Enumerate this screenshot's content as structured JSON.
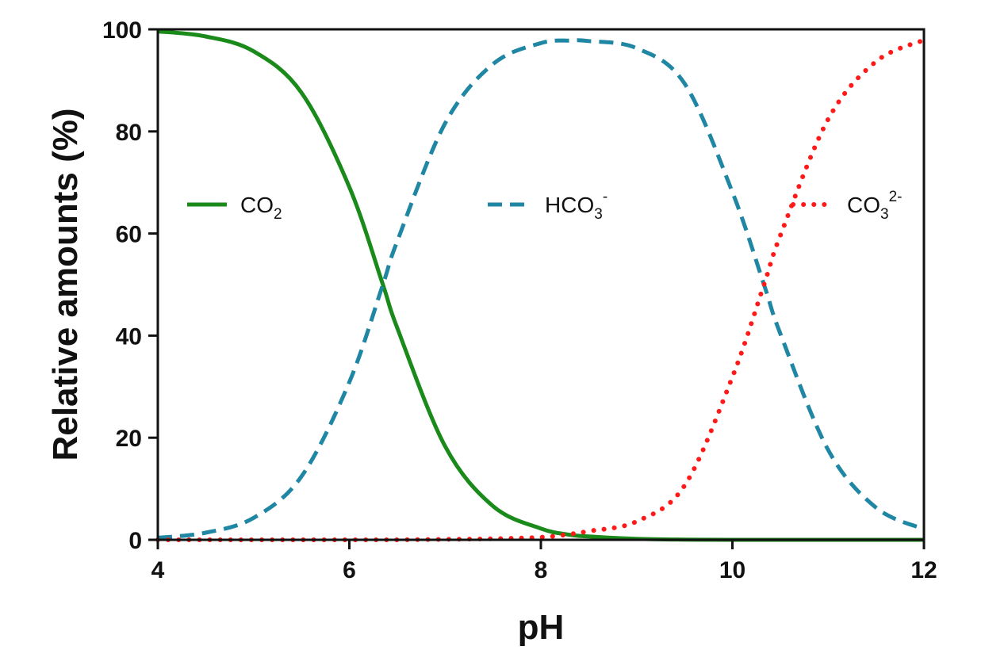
{
  "chart_data": {
    "type": "line",
    "xlabel": "pH",
    "ylabel": "Relative amounts (%)",
    "xlim": [
      4,
      12
    ],
    "ylim": [
      0,
      100
    ],
    "xticks": [
      4,
      6,
      8,
      10,
      12
    ],
    "yticks": [
      0,
      20,
      40,
      60,
      80,
      100
    ],
    "grid": false,
    "legend_placement": "inline, upper middle of the plot",
    "x": [
      4.0,
      4.5,
      5.0,
      5.5,
      6.0,
      6.35,
      6.5,
      7.0,
      7.5,
      8.0,
      8.3,
      8.5,
      9.0,
      9.5,
      10.0,
      10.33,
      10.5,
      11.0,
      11.5,
      12.0
    ],
    "series": [
      {
        "name": "CO2",
        "name_base": "CO",
        "name_sub": "2",
        "name_sup": "",
        "color": "#1a8a1a",
        "style": "solid",
        "values": [
          99.6,
          98.6,
          95.7,
          87.6,
          69.1,
          50.0,
          41.5,
          18.3,
          6.6,
          2.2,
          1.0,
          0.65,
          0.2,
          0.05,
          0.0,
          0.0,
          0.0,
          0.0,
          0.0,
          0.0
        ]
      },
      {
        "name": "HCO3-",
        "name_base": "HCO",
        "name_sub": "3",
        "name_sup": "-",
        "color": "#1f86a3",
        "style": "dashed",
        "values": [
          0.4,
          1.4,
          4.3,
          12.4,
          30.9,
          50.0,
          58.5,
          81.6,
          93.2,
          97.3,
          97.8,
          97.7,
          96.3,
          89.4,
          68.1,
          50.0,
          40.4,
          17.6,
          6.3,
          2.1
        ]
      },
      {
        "name": "CO3 2-",
        "name_base": "CO",
        "name_sub": "3",
        "name_sup": "2-",
        "color": "#ff1a1a",
        "style": "dotted",
        "values": [
          0.0,
          0.0,
          0.0,
          0.0,
          0.0,
          0.0,
          0.0,
          0.1,
          0.2,
          0.5,
          1.1,
          1.7,
          3.6,
          10.6,
          31.9,
          50.0,
          59.6,
          82.4,
          93.7,
          97.9
        ]
      }
    ]
  }
}
